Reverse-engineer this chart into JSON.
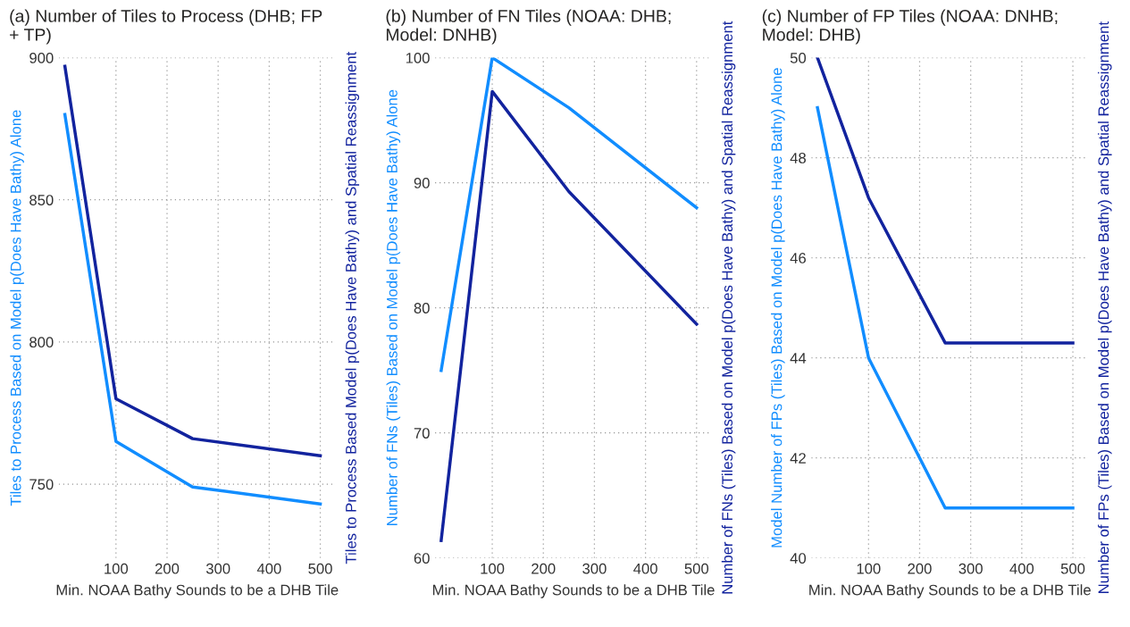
{
  "chart_data": [
    {
      "type": "line",
      "title": "(a) Number of Tiles to Process (DHB; FP + TP)",
      "xlabel": "Min. NOAA Bathy Sounds to be a DHB Tile",
      "ylabel": "Tiles to Process Based on Model p(Does Have Bathy) Alone",
      "y2label": "Tiles to Process Based Model p(Does Have Bathy) and Spatial Reassignment",
      "x": [
        0,
        100,
        250,
        500
      ],
      "xlim": [
        -12,
        530
      ],
      "xticks": [
        100,
        200,
        300,
        400,
        500
      ],
      "ylim": [
        724,
        900
      ],
      "yticks": [
        750,
        800,
        850,
        900
      ],
      "grid": true,
      "series": [
        {
          "color": "#118dff",
          "values": [
            880,
            765,
            749,
            743
          ]
        },
        {
          "color": "#12239e",
          "values": [
            897,
            780,
            766,
            760
          ]
        }
      ]
    },
    {
      "type": "line",
      "title": "(b) Number of FN Tiles (NOAA: DHB; Model: DNHB)",
      "xlabel": "Min. NOAA Bathy Sounds to be a DHB Tile",
      "ylabel": "Number of FNs (Tiles) Based on Model p(Does Have Bathy) Alone",
      "y2label": "Number of FNs (Tiles) Based on Model p(Does Have Bathy) and Spatial Reassignment",
      "x": [
        0,
        100,
        250,
        500
      ],
      "xlim": [
        -12,
        530
      ],
      "xticks": [
        100,
        200,
        300,
        400,
        500
      ],
      "ylim": [
        60,
        100
      ],
      "yticks": [
        60,
        70,
        80,
        90,
        100
      ],
      "grid": true,
      "series": [
        {
          "color": "#118dff",
          "values": [
            75,
            100,
            96,
            88
          ]
        },
        {
          "color": "#12239e",
          "values": [
            61.4,
            97.3,
            89.3,
            78.7
          ]
        }
      ]
    },
    {
      "type": "line",
      "title": "(c) Number of FP Tiles (NOAA: DNHB; Model: DHB)",
      "xlabel": "Min. NOAA Bathy Sounds to be a DHB Tile",
      "ylabel": "Model Number of FPs (Tiles) Based on Model p(Does Have Bathy) Alone",
      "y2label": "Number of FPs (Tiles) Based on Model p(Does Have Bathy) and Spatial Reassignment",
      "x": [
        0,
        100,
        250,
        500
      ],
      "xlim": [
        -12,
        530
      ],
      "xticks": [
        100,
        200,
        300,
        400,
        500
      ],
      "ylim": [
        40,
        50
      ],
      "yticks": [
        40,
        42,
        44,
        46,
        48,
        50
      ],
      "grid": true,
      "series": [
        {
          "color": "#118dff",
          "values": [
            49,
            44,
            41,
            41
          ]
        },
        {
          "color": "#12239e",
          "values": [
            50,
            47.2,
            44.3,
            44.3
          ]
        }
      ]
    }
  ]
}
